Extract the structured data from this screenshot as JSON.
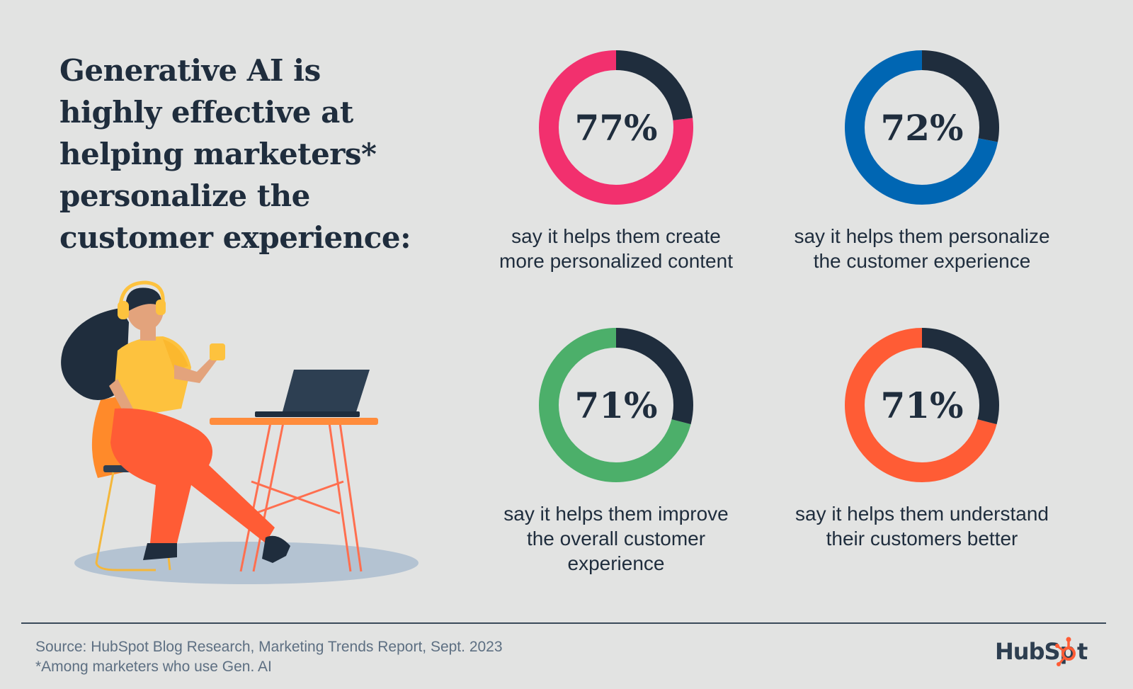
{
  "headline": "Generative AI is highly effective at helping marketers* personalize the customer experience:",
  "colors": {
    "background": "#e2e3e2",
    "dark": "#1f2d3d",
    "pink": "#f2306e",
    "blue": "#0066b3",
    "green": "#4caf6a",
    "orange": "#ff5c35"
  },
  "chart_data": {
    "type": "pie",
    "charts": [
      {
        "value": 77,
        "label": "77%",
        "color": "#f2306e",
        "caption_lines": [
          "say it helps them create",
          "more personalized content"
        ]
      },
      {
        "value": 72,
        "label": "72%",
        "color": "#0066b3",
        "caption_lines": [
          "say it helps them personalize",
          "the customer experience"
        ]
      },
      {
        "value": 71,
        "label": "71%",
        "color": "#4caf6a",
        "caption_lines": [
          "say it helps them improve",
          "the overall customer",
          "experience"
        ]
      },
      {
        "value": 71,
        "label": "71%",
        "color": "#ff5c35",
        "caption_lines": [
          "say it helps them understand",
          "their customers better"
        ]
      }
    ]
  },
  "footer": {
    "source": "Source: HubSpot Blog Research, Marketing Trends Report, Sept. 2023",
    "note": "*Among marketers who use Gen. AI"
  },
  "logo": {
    "text_left": "HubSp",
    "text_right": "t",
    "icon": "sprocket-icon"
  },
  "illustration": {
    "icon": "woman-with-laptop-illustration"
  }
}
